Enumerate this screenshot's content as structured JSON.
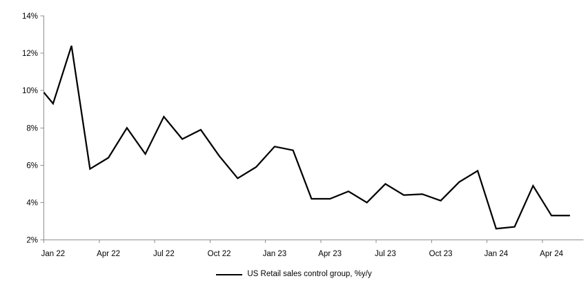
{
  "chart_data": {
    "type": "line",
    "title": "",
    "legend_position": "bottom-center",
    "grid": false,
    "colors": {
      "series": "#000000",
      "axis": "#8e8e8e",
      "text": "#000000"
    },
    "y_axis": {
      "min": 2,
      "max": 14,
      "step": 2,
      "tick_labels": [
        "2%",
        "4%",
        "6%",
        "8%",
        "10%",
        "12%",
        "14%"
      ]
    },
    "x_axis": {
      "tick_labels": [
        "Jan 22",
        "Apr 22",
        "Jul 22",
        "Oct 22",
        "Jan 23",
        "Apr 23",
        "Jul 23",
        "Oct 23",
        "Jan 24",
        "Apr 24"
      ],
      "months_per_tick": 3
    },
    "series": [
      {
        "name": "US Retail sales control group, %y/y",
        "color": "#000000",
        "axis_entry_value": 9.9,
        "months": [
          "Jan 22",
          "Feb 22",
          "Mar 22",
          "Apr 22",
          "May 22",
          "Jun 22",
          "Jul 22",
          "Aug 22",
          "Sep 22",
          "Oct 22",
          "Nov 22",
          "Dec 22",
          "Jan 23",
          "Feb 23",
          "Mar 23",
          "Apr 23",
          "May 23",
          "Jun 23",
          "Jul 23",
          "Aug 23",
          "Sep 23",
          "Oct 23",
          "Nov 23",
          "Dec 23",
          "Jan 24",
          "Feb 24",
          "Mar 24",
          "Apr 24",
          "May 24"
        ],
        "values": [
          9.3,
          12.4,
          5.8,
          6.4,
          8.0,
          6.6,
          8.6,
          7.4,
          7.9,
          6.5,
          5.3,
          5.9,
          7.0,
          6.8,
          4.2,
          4.2,
          4.6,
          4.0,
          5.0,
          4.4,
          4.45,
          4.1,
          5.1,
          5.7,
          2.6,
          2.7,
          4.9,
          3.3,
          3.3
        ]
      }
    ]
  }
}
